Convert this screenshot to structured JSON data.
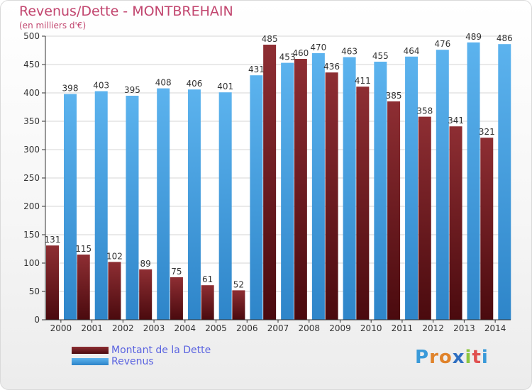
{
  "header": {
    "title": "Revenus/Dette - MONTBREHAIN",
    "subtitle": "(en milliers d'€)"
  },
  "chart_data": {
    "type": "bar",
    "categories": [
      "2000",
      "2001",
      "2002",
      "2003",
      "2004",
      "2005",
      "2006",
      "2007",
      "2008",
      "2009",
      "2010",
      "2011",
      "2012",
      "2013",
      "2014"
    ],
    "series": [
      {
        "name": "Montant de la Dette",
        "color": "#7a1f24",
        "values": [
          131,
          115,
          102,
          89,
          75,
          61,
          52,
          485,
          460,
          436,
          411,
          385,
          358,
          341,
          321
        ]
      },
      {
        "name": "Revenus",
        "color": "#4aa3e4",
        "values": [
          398,
          403,
          395,
          408,
          406,
          401,
          431,
          453,
          470,
          463,
          455,
          464,
          476,
          489,
          486
        ]
      }
    ],
    "ylim": [
      0,
      500
    ],
    "yticks": [
      0,
      50,
      100,
      150,
      200,
      250,
      300,
      350,
      400,
      450,
      500
    ],
    "grid": true,
    "legend": "bottom-left"
  },
  "legend": {
    "items": [
      {
        "label": "Montant de la Dette",
        "color": "#7a1f24"
      },
      {
        "label": "Revenus",
        "color": "#4aa3e4"
      }
    ]
  },
  "brand": {
    "letters": [
      "P",
      "r",
      "o",
      "x",
      "i",
      "t",
      "i"
    ],
    "colors": [
      "#3a9ad9",
      "#e0832b",
      "#e0832b",
      "#2f6fc1",
      "#8cc63f",
      "#e05050",
      "#3a9ad9"
    ]
  }
}
